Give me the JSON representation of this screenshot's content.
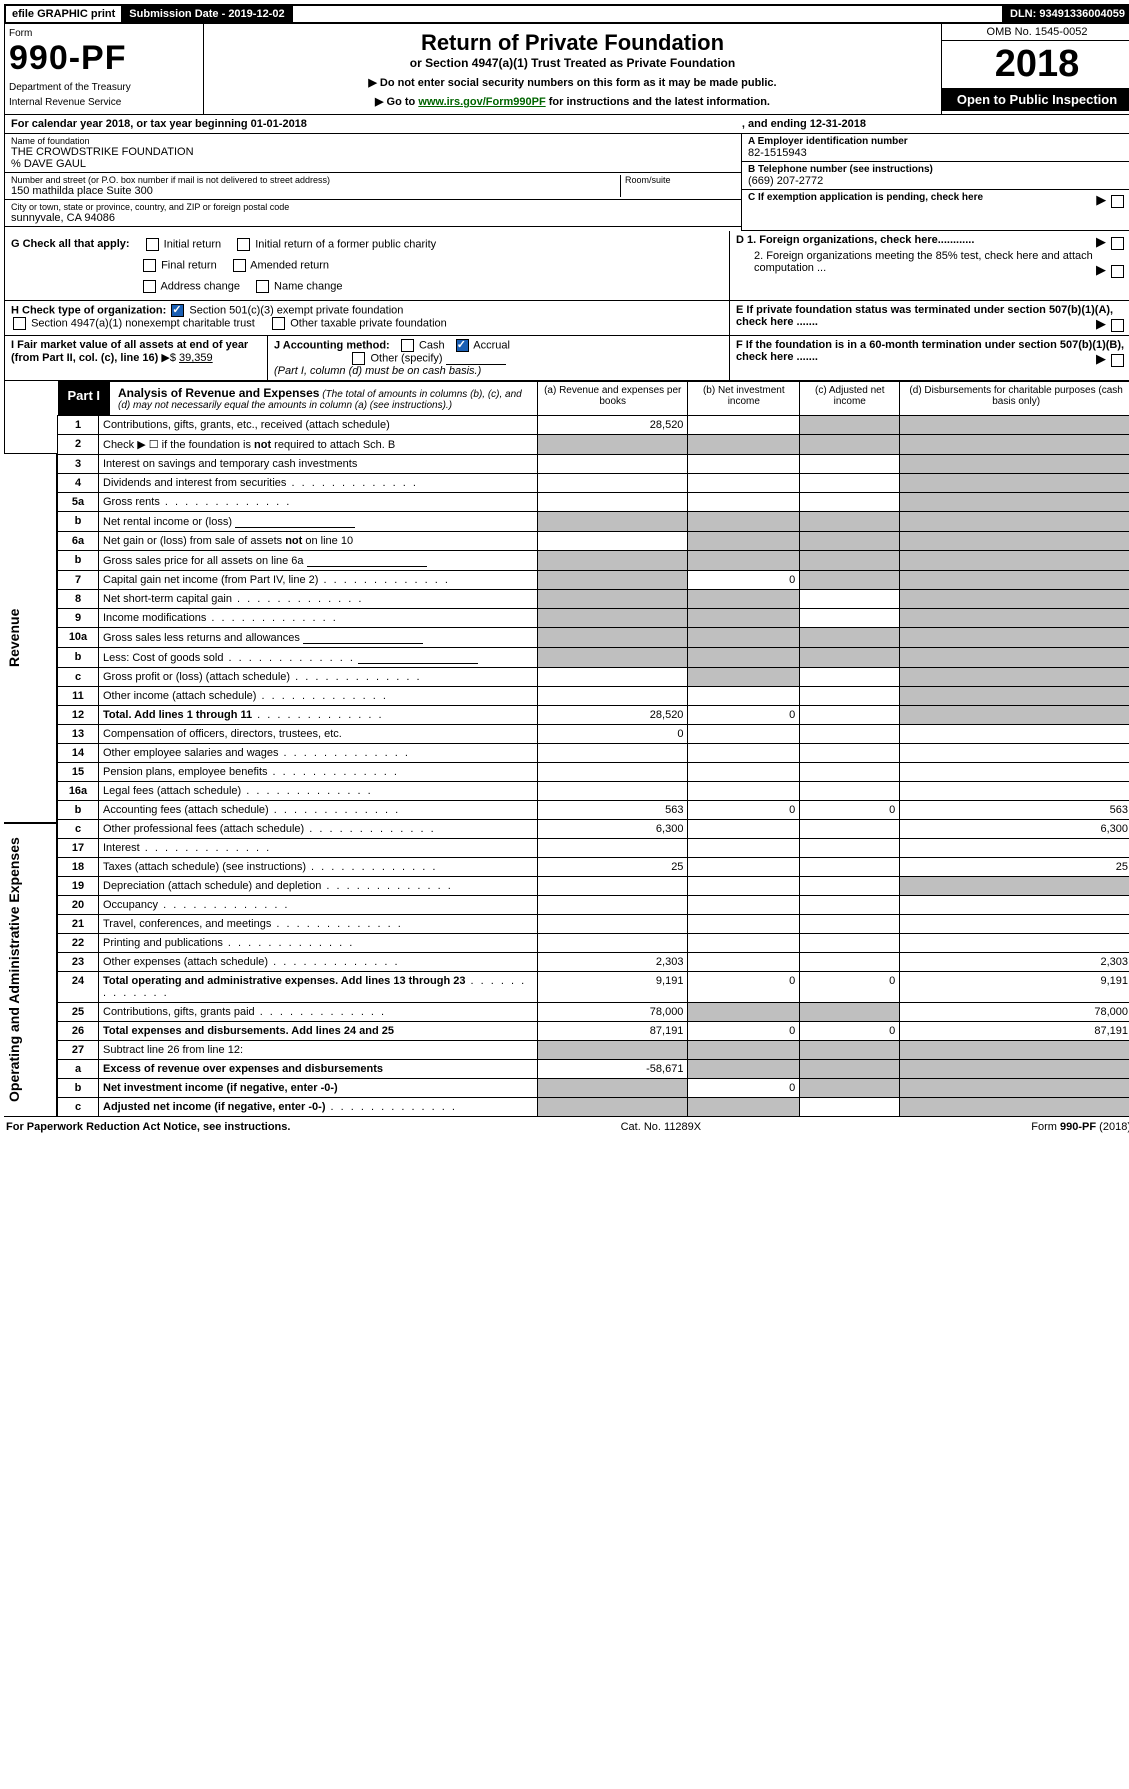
{
  "top": {
    "efile": "efile GRAPHIC print",
    "sub_date_label": "Submission Date - 2019-12-02",
    "dln": "DLN: 93491336004059"
  },
  "header": {
    "form_word": "Form",
    "form_no": "990-PF",
    "dept": "Department of the Treasury",
    "irs": "Internal Revenue Service",
    "title": "Return of Private Foundation",
    "subtitle": "or Section 4947(a)(1) Trust Treated as Private Foundation",
    "note1": "▶ Do not enter social security numbers on this form as it may be made public.",
    "note2_pre": "▶ Go to ",
    "note2_link": "www.irs.gov/Form990PF",
    "note2_post": " for instructions and the latest information.",
    "omb": "OMB No. 1545-0052",
    "year": "2018",
    "open": "Open to Public Inspection"
  },
  "cal": {
    "text_a": "For calendar year 2018, or tax year beginning 01-01-2018",
    "text_b": ", and ending 12-31-2018"
  },
  "ident": {
    "name_label": "Name of foundation",
    "name": "THE CROWDSTRIKE FOUNDATION",
    "care_of": "% DAVE GAUL",
    "street_label": "Number and street (or P.O. box number if mail is not delivered to street address)",
    "street": "150 mathilda place Suite 300",
    "room_label": "Room/suite",
    "room": "",
    "city_label": "City or town, state or province, country, and ZIP or foreign postal code",
    "city": "sunnyvale, CA  94086",
    "a_label": "A Employer identification number",
    "a_value": "82-1515943",
    "b_label": "B Telephone number (see instructions)",
    "b_value": "(669) 207-2772",
    "c_label": "C If exemption application is pending, check here",
    "d1_label": "D 1. Foreign organizations, check here............",
    "d2_label": "2. Foreign organizations meeting the 85% test, check here and attach computation ...",
    "e_label": "E  If private foundation status was terminated under section 507(b)(1)(A), check here .......",
    "f_label": "F  If the foundation is in a 60-month termination under section 507(b)(1)(B), check here ......."
  },
  "g": {
    "lead": "G Check all that apply:",
    "opts": [
      "Initial return",
      "Initial return of a former public charity",
      "Final return",
      "Amended return",
      "Address change",
      "Name change"
    ]
  },
  "h": {
    "lead": "H Check type of organization:",
    "o1": "Section 501(c)(3) exempt private foundation",
    "o2": "Section 4947(a)(1) nonexempt charitable trust",
    "o3": "Other taxable private foundation"
  },
  "i": {
    "lead": "I Fair market value of all assets at end of year (from Part II, col. (c), line 16)",
    "arrow": "▶$",
    "value": "39,359"
  },
  "j": {
    "lead": "J Accounting method:",
    "cash": "Cash",
    "accrual": "Accrual",
    "other": "Other (specify)",
    "note": "(Part I, column (d) must be on cash basis.)"
  },
  "part1": {
    "tab": "Part I",
    "title": "Analysis of Revenue and Expenses",
    "sub": "(The total of amounts in columns (b), (c), and (d) may not necessarily equal the amounts in column (a) (see instructions).)",
    "cols": {
      "a": "(a)   Revenue and expenses per books",
      "b": "(b)   Net investment income",
      "c": "(c)   Adjusted net income",
      "d": "(d)   Disbursements for charitable purposes (cash basis only)"
    },
    "side_rev": "Revenue",
    "side_exp": "Operating and Administrative Expenses",
    "rows": [
      {
        "n": "1",
        "d": "Contributions, gifts, grants, etc., received (attach schedule)",
        "a": "28,520",
        "b": "",
        "c": null,
        "dcol": null
      },
      {
        "n": "2",
        "d": "Check ▶ ☐ if the foundation is not required to attach Sch. B",
        "a": null,
        "b": null,
        "c": null,
        "dcol": null,
        "grey_all": true,
        "bold_not": true
      },
      {
        "n": "3",
        "d": "Interest on savings and temporary cash investments",
        "a": "",
        "b": "",
        "c": "",
        "dcol": null
      },
      {
        "n": "4",
        "d": "Dividends and interest from securities",
        "dots": true,
        "a": "",
        "b": "",
        "c": "",
        "dcol": null
      },
      {
        "n": "5a",
        "d": "Gross rents",
        "dots": true,
        "a": "",
        "b": "",
        "c": "",
        "dcol": null
      },
      {
        "n": "b",
        "d": "Net rental income or (loss)",
        "inline": true,
        "grey_all": true
      },
      {
        "n": "6a",
        "d": "Net gain or (loss) from sale of assets not on line 10",
        "a": "",
        "b": null,
        "c": null,
        "dcol": null,
        "grey_bcd": true
      },
      {
        "n": "b",
        "d": "Gross sales price for all assets on line 6a",
        "inline": true,
        "grey_all": true
      },
      {
        "n": "7",
        "d": "Capital gain net income (from Part IV, line 2)",
        "dots": true,
        "a": null,
        "b": "0",
        "c": null,
        "dcol": null,
        "grey_a": true,
        "grey_cd": true
      },
      {
        "n": "8",
        "d": "Net short-term capital gain",
        "dots": true,
        "a": null,
        "b": null,
        "c": "",
        "dcol": null,
        "grey_a": true,
        "grey_b": true,
        "grey_d": true
      },
      {
        "n": "9",
        "d": "Income modifications",
        "dots": true,
        "a": null,
        "b": null,
        "c": "",
        "dcol": null,
        "grey_a": true,
        "grey_b": true,
        "grey_d": true
      },
      {
        "n": "10a",
        "d": "Gross sales less returns and allowances",
        "inline": true,
        "grey_all": true
      },
      {
        "n": "b",
        "d": "Less: Cost of goods sold",
        "dots": true,
        "inline": true,
        "grey_all": true
      },
      {
        "n": "c",
        "d": "Gross profit or (loss) (attach schedule)",
        "dots": true,
        "a": "",
        "b": null,
        "c": "",
        "dcol": null,
        "grey_b": true,
        "grey_d": true
      },
      {
        "n": "11",
        "d": "Other income (attach schedule)",
        "dots": true,
        "a": "",
        "b": "",
        "c": "",
        "dcol": null,
        "grey_d": true
      },
      {
        "n": "12",
        "d": "Total. Add lines 1 through 11",
        "dots": true,
        "bold": true,
        "a": "28,520",
        "b": "0",
        "c": "",
        "dcol": null,
        "grey_d": true
      },
      {
        "n": "13",
        "d": "Compensation of officers, directors, trustees, etc.",
        "a": "0",
        "b": "",
        "c": "",
        "dcol": ""
      },
      {
        "n": "14",
        "d": "Other employee salaries and wages",
        "dots": true,
        "a": "",
        "b": "",
        "c": "",
        "dcol": ""
      },
      {
        "n": "15",
        "d": "Pension plans, employee benefits",
        "dots": true,
        "a": "",
        "b": "",
        "c": "",
        "dcol": ""
      },
      {
        "n": "16a",
        "d": "Legal fees (attach schedule)",
        "dots": true,
        "a": "",
        "b": "",
        "c": "",
        "dcol": ""
      },
      {
        "n": "b",
        "d": "Accounting fees (attach schedule)",
        "dots": true,
        "a": "563",
        "b": "0",
        "c": "0",
        "dcol": "563"
      },
      {
        "n": "c",
        "d": "Other professional fees (attach schedule)",
        "dots": true,
        "a": "6,300",
        "b": "",
        "c": "",
        "dcol": "6,300"
      },
      {
        "n": "17",
        "d": "Interest",
        "dots": true,
        "a": "",
        "b": "",
        "c": "",
        "dcol": ""
      },
      {
        "n": "18",
        "d": "Taxes (attach schedule) (see instructions)",
        "dots": true,
        "a": "25",
        "b": "",
        "c": "",
        "dcol": "25"
      },
      {
        "n": "19",
        "d": "Depreciation (attach schedule) and depletion",
        "dots": true,
        "a": "",
        "b": "",
        "c": "",
        "dcol": null,
        "grey_d": true
      },
      {
        "n": "20",
        "d": "Occupancy",
        "dots": true,
        "a": "",
        "b": "",
        "c": "",
        "dcol": ""
      },
      {
        "n": "21",
        "d": "Travel, conferences, and meetings",
        "dots": true,
        "a": "",
        "b": "",
        "c": "",
        "dcol": ""
      },
      {
        "n": "22",
        "d": "Printing and publications",
        "dots": true,
        "a": "",
        "b": "",
        "c": "",
        "dcol": ""
      },
      {
        "n": "23",
        "d": "Other expenses (attach schedule)",
        "dots": true,
        "a": "2,303",
        "b": "",
        "c": "",
        "dcol": "2,303"
      },
      {
        "n": "24",
        "d": "Total operating and administrative expenses. Add lines 13 through 23",
        "dots": true,
        "bold": true,
        "a": "9,191",
        "b": "0",
        "c": "0",
        "dcol": "9,191"
      },
      {
        "n": "25",
        "d": "Contributions, gifts, grants paid",
        "dots": true,
        "a": "78,000",
        "b": null,
        "c": null,
        "dcol": "78,000",
        "grey_b": true,
        "grey_c": true
      },
      {
        "n": "26",
        "d": "Total expenses and disbursements. Add lines 24 and 25",
        "bold": true,
        "a": "87,191",
        "b": "0",
        "c": "0",
        "dcol": "87,191"
      },
      {
        "n": "27",
        "d": "Subtract line 26 from line 12:",
        "grey_all": true
      },
      {
        "n": "a",
        "d": "Excess of revenue over expenses and disbursements",
        "bold": true,
        "a": "-58,671",
        "b": null,
        "c": null,
        "dcol": null,
        "grey_bcd": true
      },
      {
        "n": "b",
        "d": "Net investment income (if negative, enter -0-)",
        "bold": true,
        "a": null,
        "b": "0",
        "c": null,
        "dcol": null,
        "grey_a": true,
        "grey_cd": true
      },
      {
        "n": "c",
        "d": "Adjusted net income (if negative, enter -0-)",
        "bold": true,
        "dots": true,
        "a": null,
        "b": null,
        "c": "",
        "dcol": null,
        "grey_a": true,
        "grey_b": true,
        "grey_d": true
      }
    ]
  },
  "footer": {
    "left": "For Paperwork Reduction Act Notice, see instructions.",
    "center": "Cat. No. 11289X",
    "right": "Form 990-PF (2018)"
  },
  "colors": {
    "grey": "#bfbfbf",
    "link_green": "#006400",
    "link_blue": "#1a5fb4",
    "check_blue": "#1a5fb4"
  }
}
